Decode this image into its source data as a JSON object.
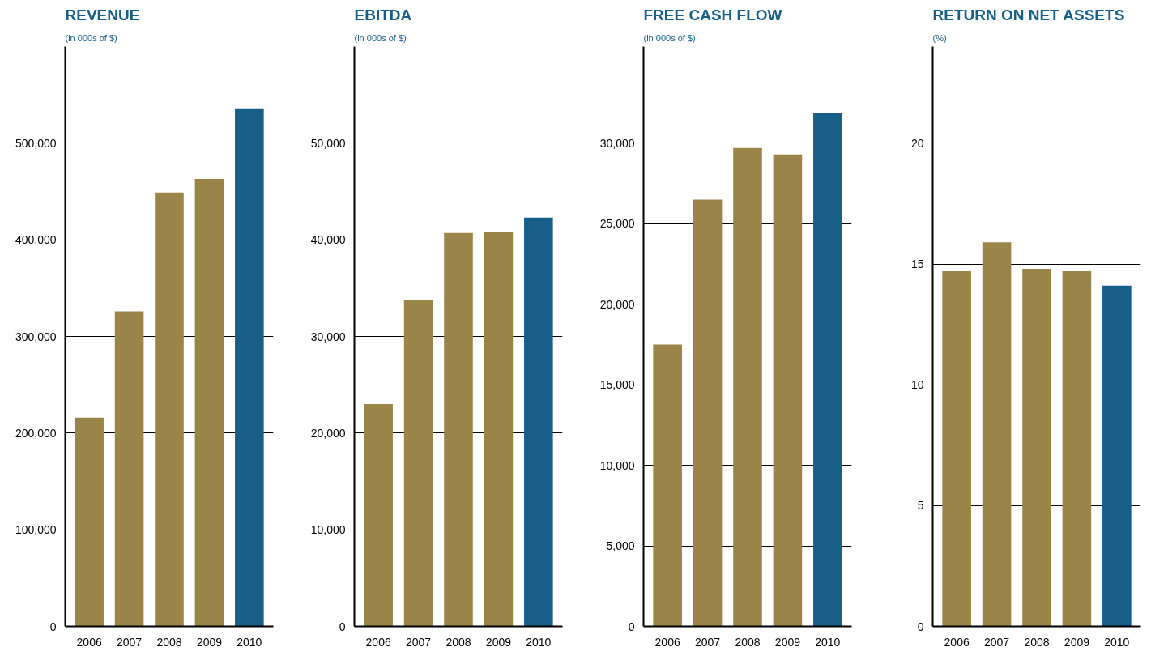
{
  "chart_data": [
    {
      "type": "bar",
      "title": "REVENUE",
      "subtitle": "(in 000s of $)",
      "categories": [
        "2006",
        "2007",
        "2008",
        "2009",
        "2010"
      ],
      "values": [
        216000,
        326000,
        449000,
        463000,
        536000
      ],
      "colors": [
        "#9a8447",
        "#9a8447",
        "#9a8447",
        "#9a8447",
        "#175e88"
      ],
      "ylim": [
        0,
        600000
      ],
      "yticks": [
        0,
        {
          "value": 100000,
          "label": "100,000"
        },
        {
          "value": 200000,
          "label": "200,000"
        },
        {
          "value": 300000,
          "label": "300,000"
        },
        {
          "value": 400000,
          "label": "400,000"
        },
        {
          "value": 500000,
          "label": "500,000"
        }
      ],
      "grid": "y"
    },
    {
      "type": "bar",
      "title": "EBITDA",
      "subtitle": "(in 000s of $)",
      "categories": [
        "2006",
        "2007",
        "2008",
        "2009",
        "2010"
      ],
      "values": [
        23000,
        33800,
        40700,
        40800,
        42300
      ],
      "colors": [
        "#9a8447",
        "#9a8447",
        "#9a8447",
        "#9a8447",
        "#175e88"
      ],
      "ylim": [
        0,
        60000
      ],
      "yticks": [
        0,
        {
          "value": 10000,
          "label": "10,000"
        },
        {
          "value": 20000,
          "label": "20,000"
        },
        {
          "value": 30000,
          "label": "30,000"
        },
        {
          "value": 40000,
          "label": "40,000"
        },
        {
          "value": 50000,
          "label": "50,000"
        }
      ],
      "grid": "y"
    },
    {
      "type": "bar",
      "title": "FREE CASH FLOW",
      "subtitle": "(in 000s of $)",
      "categories": [
        "2006",
        "2007",
        "2008",
        "2009",
        "2010"
      ],
      "values": [
        17500,
        26500,
        29700,
        29300,
        31900
      ],
      "colors": [
        "#9a8447",
        "#9a8447",
        "#9a8447",
        "#9a8447",
        "#175e88"
      ],
      "ylim": [
        0,
        36000
      ],
      "yticks": [
        0,
        {
          "value": 5000,
          "label": "5,000"
        },
        {
          "value": 10000,
          "label": "10,000"
        },
        {
          "value": 15000,
          "label": "15,000"
        },
        {
          "value": 20000,
          "label": "20,000"
        },
        {
          "value": 25000,
          "label": "25,000"
        },
        {
          "value": 30000,
          "label": "30,000"
        }
      ],
      "grid": "y"
    },
    {
      "type": "bar",
      "title": "RETURN ON NET ASSETS",
      "subtitle": "(%)",
      "categories": [
        "2006",
        "2007",
        "2008",
        "2009",
        "2010"
      ],
      "values": [
        14.7,
        15.9,
        14.8,
        14.7,
        14.1
      ],
      "colors": [
        "#9a8447",
        "#9a8447",
        "#9a8447",
        "#9a8447",
        "#175e88"
      ],
      "ylim": [
        0,
        24
      ],
      "yticks": [
        0,
        5,
        10,
        15,
        20
      ],
      "grid": "y"
    }
  ]
}
